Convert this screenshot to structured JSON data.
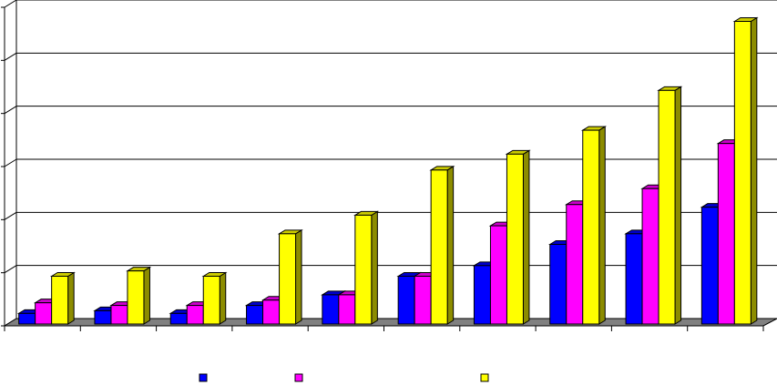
{
  "chart_data": {
    "type": "bar",
    "style": "3d-clustered-column",
    "title": "",
    "xlabel": "",
    "ylabel": "",
    "categories": [
      "",
      "",
      "",
      "",
      "",
      "",
      "",
      "",
      "",
      ""
    ],
    "series": [
      {
        "color": "#0000ff",
        "values": [
          0.2,
          0.25,
          0.2,
          0.35,
          0.55,
          0.9,
          1.1,
          1.5,
          1.7,
          2.2
        ]
      },
      {
        "color": "#ff00ff",
        "values": [
          0.4,
          0.35,
          0.35,
          0.45,
          0.55,
          0.9,
          1.85,
          2.25,
          2.55,
          3.4
        ]
      },
      {
        "color": "#ffff00",
        "values": [
          0.9,
          1.0,
          0.9,
          1.7,
          2.05,
          2.9,
          3.2,
          3.65,
          4.4,
          5.7
        ]
      }
    ],
    "ylim": [
      0,
      6
    ],
    "ytick_count": 7,
    "grid": true,
    "legend": "bottom-center",
    "floor_color": "#808080"
  }
}
